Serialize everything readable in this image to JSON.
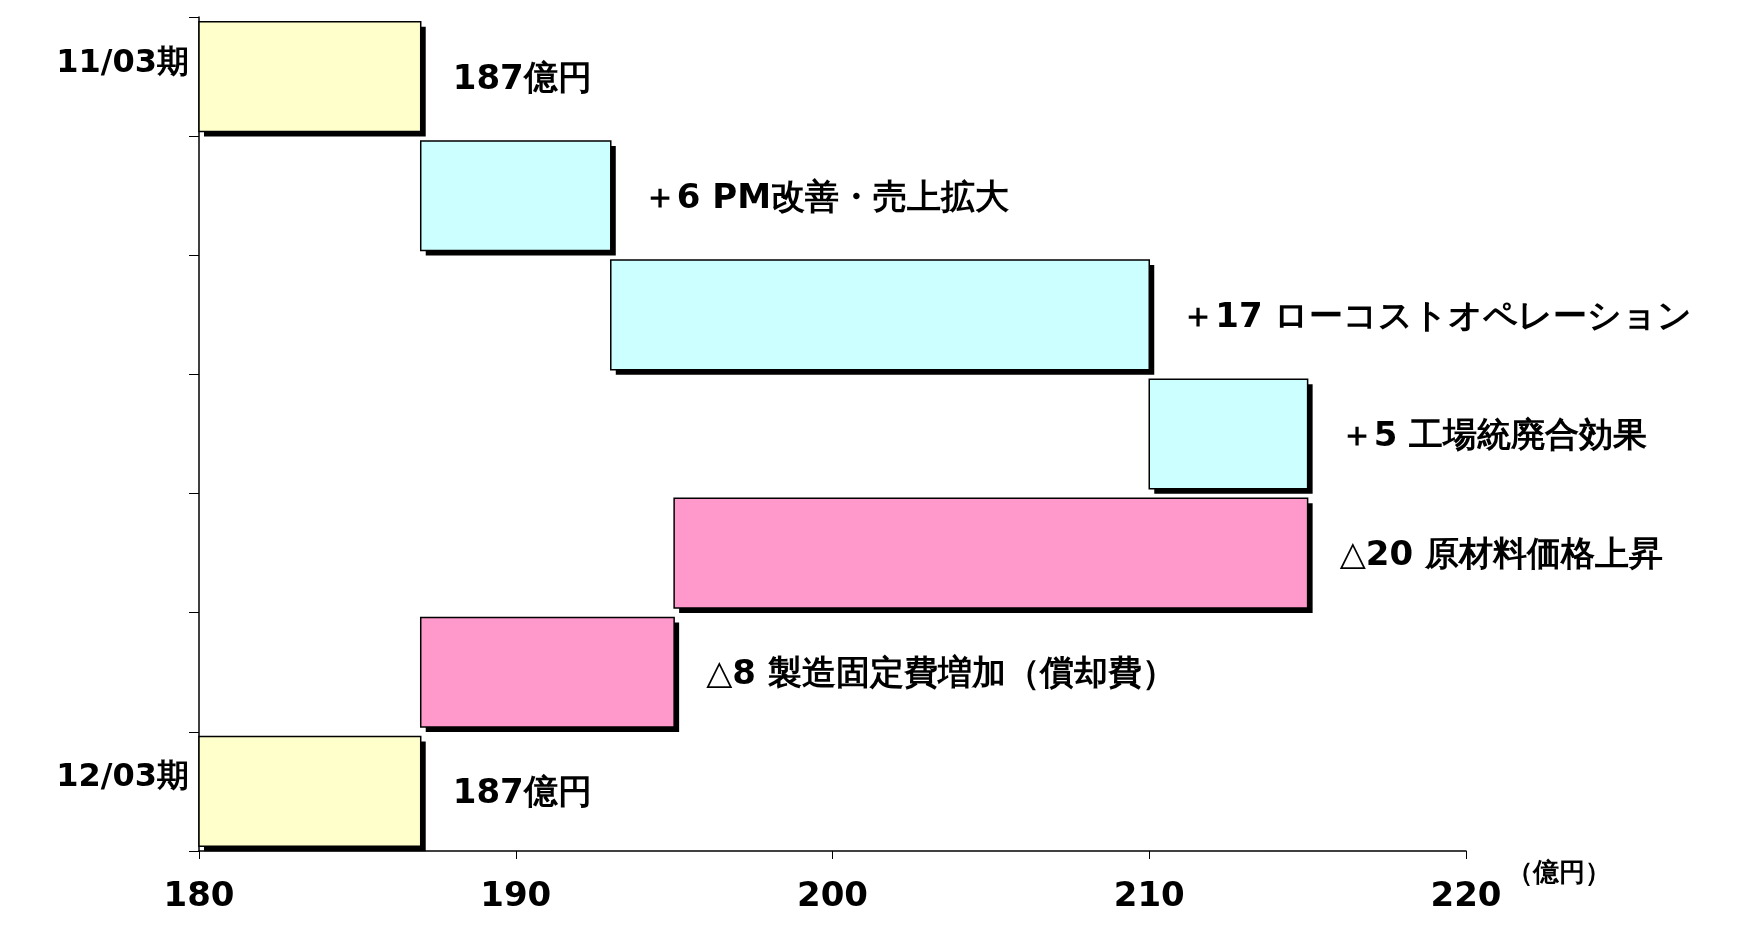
{
  "chart_data": {
    "type": "bar",
    "orientation": "horizontal",
    "categories": [
      "11/03期",
      null,
      null,
      null,
      null,
      null,
      "12/03期"
    ],
    "values": [
      187,
      6,
      17,
      5,
      -20,
      -8,
      187
    ],
    "base": [
      null,
      187,
      193,
      210,
      215,
      195,
      null
    ],
    "colors": [
      "#ffffcc",
      "#ccffff",
      "#ccffff",
      "#ccffff",
      "#ff99cc",
      "#ff99cc",
      "#ffffcc"
    ],
    "value_labels": [
      "187億円",
      "＋6 PM改善・売上拡大",
      "＋17 ローコストオペレーション",
      "＋5 工場統廃合効果",
      "△20 原材料価格上昇",
      "△8 製造固定費増加（償却費）",
      "187億円"
    ],
    "xlabel": "（億円）",
    "xlim": [
      180,
      220
    ],
    "xticks": [
      180,
      190,
      200,
      210,
      220
    ]
  }
}
